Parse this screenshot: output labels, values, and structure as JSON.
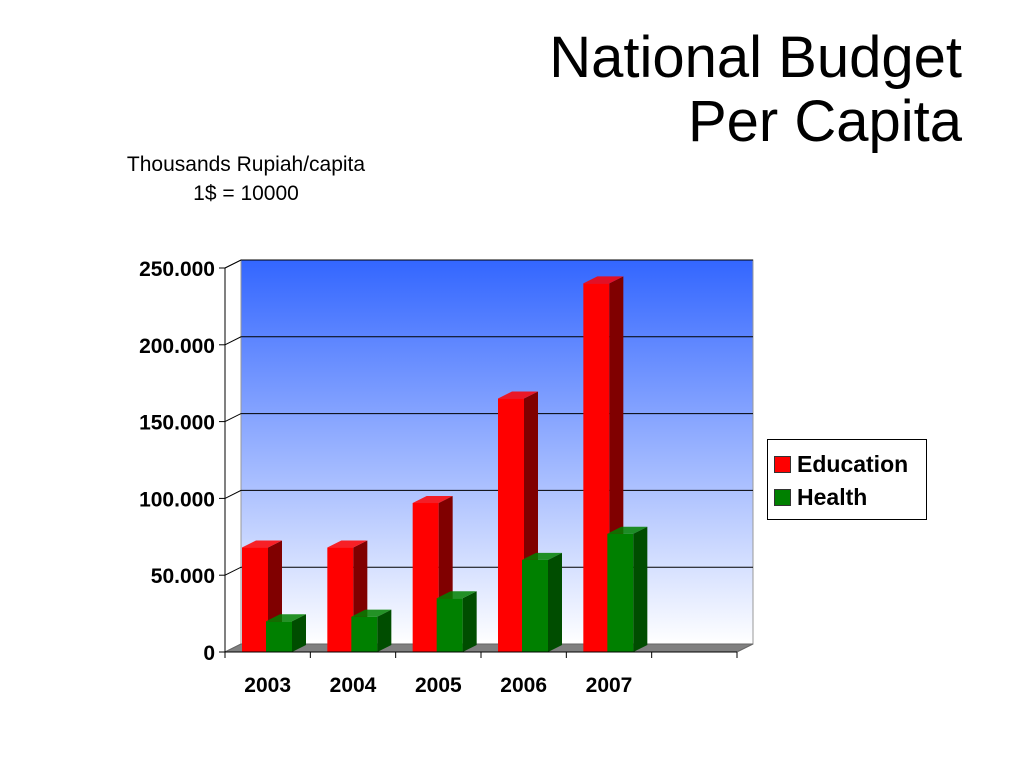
{
  "title_lines": [
    "National Budget",
    "Per Capita"
  ],
  "subtitle_lines": [
    "Thousands Rupiah/capita",
    "1$ = 10000"
  ],
  "colors": {
    "education": "#ff0000",
    "education_side": "#800000",
    "health": "#008000",
    "health_side": "#004d00",
    "wall_top": "#3366ff",
    "wall_bottom": "#ffffff",
    "floor": "#808080",
    "gridline": "#000000"
  },
  "chart_data": {
    "type": "bar",
    "style": "3d-clustered-column",
    "categories": [
      "2003",
      "2004",
      "2005",
      "2006",
      "2007"
    ],
    "series": [
      {
        "name": "Education",
        "values": [
          68000,
          68000,
          97000,
          165000,
          240000
        ]
      },
      {
        "name": "Health",
        "values": [
          20000,
          23000,
          35000,
          60000,
          77000
        ]
      }
    ],
    "ylim": [
      0,
      250000
    ],
    "yticks": [
      0,
      50000,
      100000,
      150000,
      200000,
      250000
    ],
    "ytick_labels": [
      "0",
      "50.000",
      "100.000",
      "150.000",
      "200.000",
      "250.000"
    ],
    "grid": true,
    "legend": "right"
  }
}
